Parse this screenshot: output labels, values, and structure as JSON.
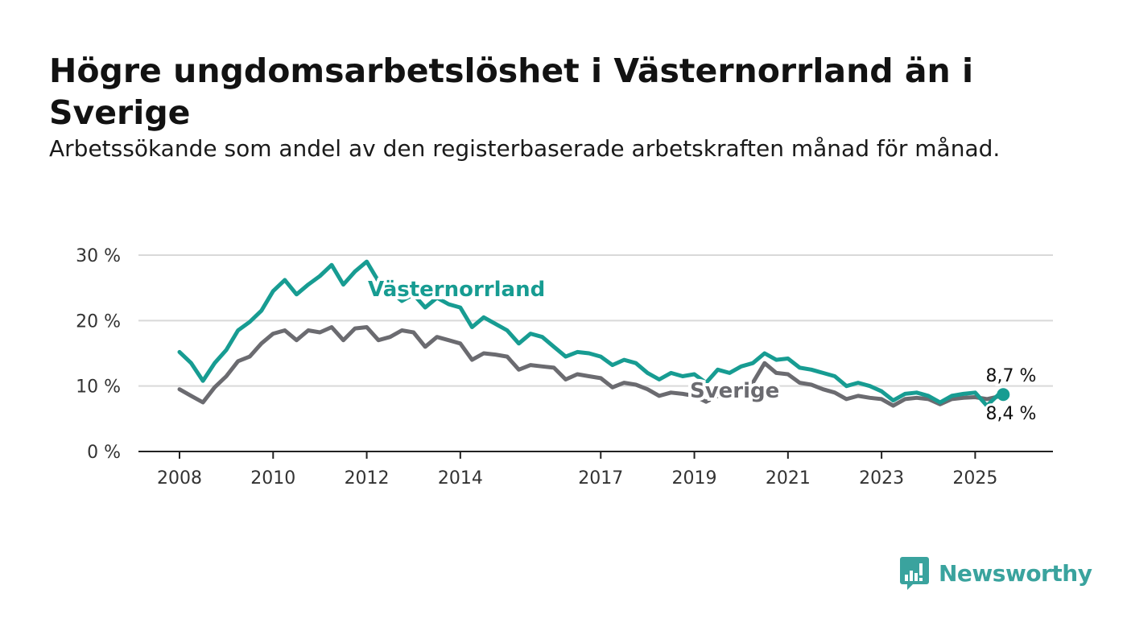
{
  "title": "Högre ungdomsarbetslöshet i Västernorrland än i Sverige",
  "subtitle": "Arbetssökande som andel av den registerbaserade arbetskraften månad för månad.",
  "brand": "Newsworthy",
  "colors": {
    "vasternorrland": "#179c92",
    "sverige": "#6b6b70",
    "grid": "#d9d9d9",
    "axis": "#222222",
    "logo": "#3aa39e"
  },
  "chart_data": {
    "type": "line",
    "title": "Högre ungdomsarbetslöshet i Västernorrland än i Sverige",
    "subtitle": "Arbetssökande som andel av den registerbaserade arbetskraften månad för månad.",
    "xlabel": "",
    "ylabel": "",
    "xlim": [
      2008.0,
      2025.75
    ],
    "ylim": [
      0,
      30
    ],
    "y_ticks": [
      0,
      10,
      20,
      30
    ],
    "y_tick_labels": [
      "0 %",
      "10 %",
      "20 %",
      "30 %"
    ],
    "x_ticks": [
      2008,
      2010,
      2012,
      2014,
      2017,
      2019,
      2021,
      2023,
      2025
    ],
    "x_tick_labels": [
      "2008",
      "2010",
      "2012",
      "2014",
      "2017",
      "2019",
      "2021",
      "2023",
      "2025"
    ],
    "grid": "horizontal",
    "series": [
      {
        "name": "Västernorrland",
        "color": "#179c92",
        "x": [
          2008.0,
          2008.25,
          2008.5,
          2008.75,
          2009.0,
          2009.25,
          2009.5,
          2009.75,
          2010.0,
          2010.25,
          2010.5,
          2010.75,
          2011.0,
          2011.25,
          2011.5,
          2011.75,
          2012.0,
          2012.25,
          2012.5,
          2012.75,
          2013.0,
          2013.25,
          2013.5,
          2013.75,
          2014.0,
          2014.25,
          2014.5,
          2014.75,
          2015.0,
          2015.25,
          2015.5,
          2015.75,
          2016.0,
          2016.25,
          2016.5,
          2016.75,
          2017.0,
          2017.25,
          2017.5,
          2017.75,
          2018.0,
          2018.25,
          2018.5,
          2018.75,
          2019.0,
          2019.25,
          2019.5,
          2019.75,
          2020.0,
          2020.25,
          2020.5,
          2020.75,
          2021.0,
          2021.25,
          2021.5,
          2021.75,
          2022.0,
          2022.25,
          2022.5,
          2022.75,
          2023.0,
          2023.25,
          2023.5,
          2023.75,
          2024.0,
          2024.25,
          2024.5,
          2024.75,
          2025.0,
          2025.25,
          2025.5,
          2025.6
        ],
        "values": [
          15.2,
          13.5,
          10.8,
          13.5,
          15.5,
          18.5,
          19.8,
          21.5,
          24.5,
          26.2,
          24.0,
          25.5,
          26.8,
          28.5,
          25.5,
          27.5,
          29.0,
          26.0,
          24.5,
          23.0,
          24.0,
          22.0,
          23.5,
          22.5,
          22.0,
          19.0,
          20.5,
          19.5,
          18.5,
          16.5,
          18.0,
          17.5,
          16.0,
          14.5,
          15.2,
          15.0,
          14.5,
          13.2,
          14.0,
          13.5,
          12.0,
          11.0,
          12.0,
          11.5,
          11.8,
          10.5,
          12.5,
          12.0,
          13.0,
          13.5,
          15.0,
          14.0,
          14.2,
          12.8,
          12.5,
          12.0,
          11.5,
          10.0,
          10.5,
          10.0,
          9.2,
          7.8,
          8.8,
          9.0,
          8.5,
          7.5,
          8.5,
          8.8,
          9.0,
          7.0,
          8.7,
          8.7
        ]
      },
      {
        "name": "Sverige",
        "color": "#6b6b70",
        "x": [
          2008.0,
          2008.25,
          2008.5,
          2008.75,
          2009.0,
          2009.25,
          2009.5,
          2009.75,
          2010.0,
          2010.25,
          2010.5,
          2010.75,
          2011.0,
          2011.25,
          2011.5,
          2011.75,
          2012.0,
          2012.25,
          2012.5,
          2012.75,
          2013.0,
          2013.25,
          2013.5,
          2013.75,
          2014.0,
          2014.25,
          2014.5,
          2014.75,
          2015.0,
          2015.25,
          2015.5,
          2015.75,
          2016.0,
          2016.25,
          2016.5,
          2016.75,
          2017.0,
          2017.25,
          2017.5,
          2017.75,
          2018.0,
          2018.25,
          2018.5,
          2018.75,
          2019.0,
          2019.25,
          2019.5,
          2019.75,
          2020.0,
          2020.25,
          2020.5,
          2020.75,
          2021.0,
          2021.25,
          2021.5,
          2021.75,
          2022.0,
          2022.25,
          2022.5,
          2022.75,
          2023.0,
          2023.25,
          2023.5,
          2023.75,
          2024.0,
          2024.25,
          2024.5,
          2024.75,
          2025.0,
          2025.25,
          2025.5,
          2025.6
        ],
        "values": [
          9.5,
          8.5,
          7.5,
          9.8,
          11.5,
          13.8,
          14.5,
          16.5,
          18.0,
          18.5,
          17.0,
          18.5,
          18.2,
          19.0,
          17.0,
          18.8,
          19.0,
          17.0,
          17.5,
          18.5,
          18.2,
          16.0,
          17.5,
          17.0,
          16.5,
          14.0,
          15.0,
          14.8,
          14.5,
          12.5,
          13.2,
          13.0,
          12.8,
          11.0,
          11.8,
          11.5,
          11.2,
          9.8,
          10.5,
          10.2,
          9.5,
          8.5,
          9.0,
          8.8,
          8.5,
          7.6,
          8.5,
          8.8,
          9.5,
          10.5,
          13.5,
          12.0,
          11.8,
          10.5,
          10.2,
          9.5,
          9.0,
          8.0,
          8.5,
          8.2,
          8.0,
          7.0,
          8.0,
          8.2,
          8.0,
          7.2,
          8.0,
          8.2,
          8.3,
          8.0,
          8.4,
          8.4
        ]
      }
    ],
    "series_labels": [
      "Västernorrland",
      "Sverige"
    ],
    "end_values": [
      "8,7 %",
      "8,4 %"
    ],
    "legend": "inline labels on lines"
  }
}
